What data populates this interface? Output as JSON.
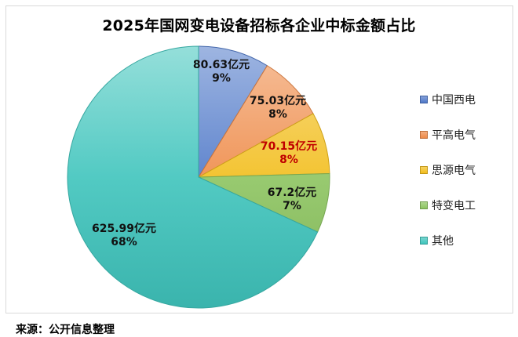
{
  "title": "2025年国网变电设备招标各企业中标金额占比",
  "source": "来源：公开信息整理",
  "chart_data": {
    "type": "pie",
    "title": "2025年国网变电设备招标各企业中标金额占比",
    "unit": "亿元",
    "categories": [
      "中国西电",
      "平高电气",
      "思源电气",
      "特变电工",
      "其他"
    ],
    "values": [
      80.63,
      75.03,
      70.15,
      67.2,
      625.99
    ],
    "percentages": [
      "9%",
      "8%",
      "8%",
      "7%",
      "68%"
    ],
    "value_labels": [
      "80.63亿元",
      "75.03亿元",
      "70.15亿元",
      "67.2亿元",
      "625.99亿元"
    ],
    "colors": [
      "#4f78c8",
      "#ee8a48",
      "#f2bd1c",
      "#8cc460",
      "#3fc4bc"
    ],
    "label_colors": [
      "#111111",
      "#111111",
      "#c00000",
      "#111111",
      "#111111"
    ],
    "start_angle_deg": 0,
    "direction": "clockwise",
    "legend_position": "right"
  },
  "legend": {
    "items": [
      {
        "label": "中国西电"
      },
      {
        "label": "平高电气"
      },
      {
        "label": "思源电气"
      },
      {
        "label": "特变电工"
      },
      {
        "label": "其他"
      }
    ]
  }
}
